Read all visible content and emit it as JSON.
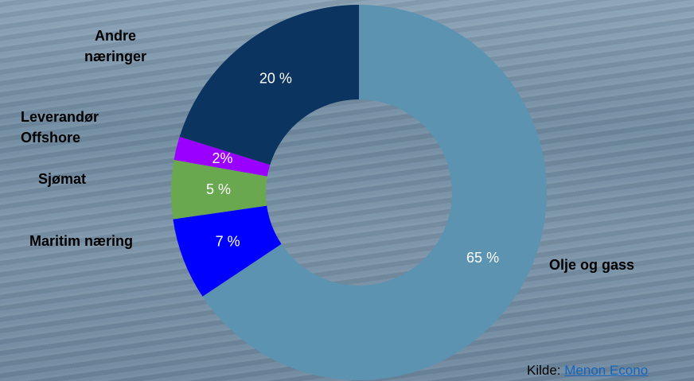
{
  "chart_data": {
    "type": "donut",
    "categories": [
      "Olje og gass",
      "Maritim næring",
      "Sjømat",
      "Leverandør Offshore",
      "Andre næringer"
    ],
    "values": [
      65,
      7,
      5,
      2,
      20
    ],
    "value_labels": [
      "65 %",
      "7 %",
      "5 %",
      "2%",
      "20 %"
    ],
    "colors": [
      "#5b93b1",
      "#0000ff",
      "#6aa84f",
      "#9900ff",
      "#0b3560"
    ]
  },
  "source": {
    "label": "Kilde:",
    "link": "Menon Econo"
  }
}
